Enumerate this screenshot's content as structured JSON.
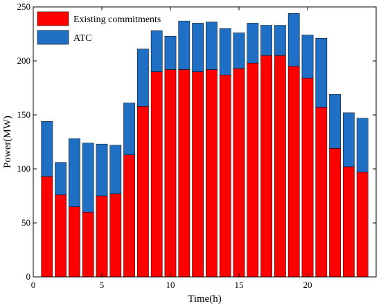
{
  "chart_data": {
    "type": "bar",
    "stacked": true,
    "x": [
      1,
      2,
      3,
      4,
      5,
      6,
      7,
      8,
      9,
      10,
      11,
      12,
      13,
      14,
      15,
      16,
      17,
      18,
      19,
      20,
      21,
      22,
      23,
      24
    ],
    "series": [
      {
        "name": "Existing commitments",
        "color": "#ff0000",
        "values": [
          93,
          76,
          65,
          60,
          75,
          77,
          113,
          158,
          190,
          192,
          192,
          190,
          192,
          187,
          193,
          198,
          205,
          205,
          195,
          184,
          157,
          119,
          102,
          97
        ]
      },
      {
        "name": "ATC",
        "color": "#1f6fc5",
        "values": [
          51,
          30,
          63,
          64,
          48,
          45,
          48,
          53,
          38,
          31,
          45,
          45,
          44,
          43,
          33,
          37,
          28,
          28,
          49,
          40,
          64,
          50,
          50,
          50
        ]
      }
    ],
    "xlabel": "Time(h)",
    "ylabel": "Power(MW)",
    "xlim": [
      0,
      25
    ],
    "ylim": [
      0,
      250
    ],
    "xticks": [
      0,
      5,
      10,
      15,
      20
    ],
    "yticks": [
      0,
      50,
      100,
      150,
      200,
      250
    ],
    "grid": false,
    "legend_position": "top-left"
  }
}
